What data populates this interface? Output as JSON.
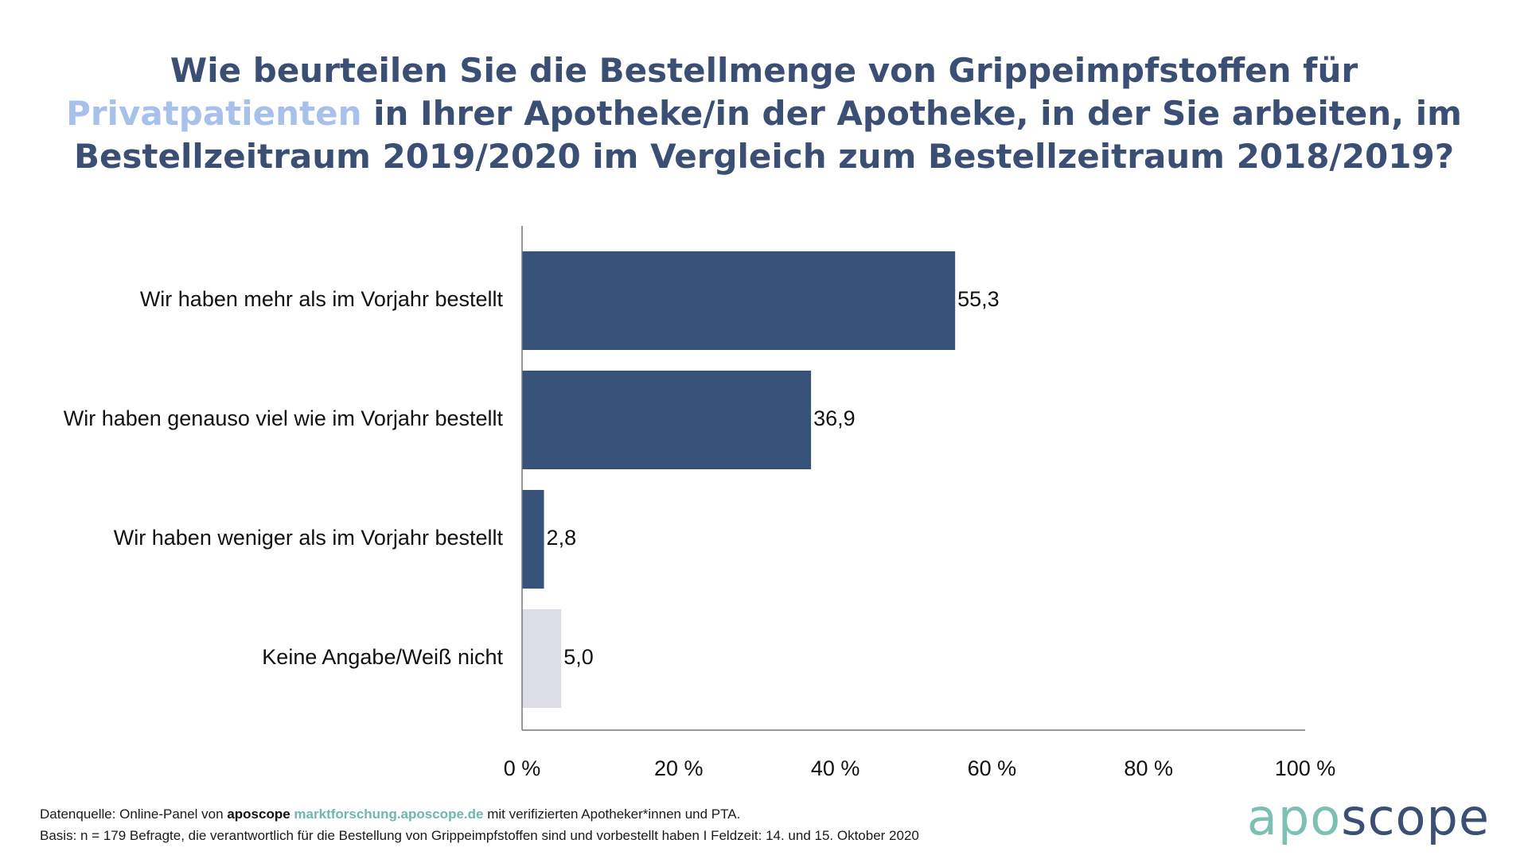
{
  "title": {
    "part1": "Wie beurteilen Sie die Bestellmenge von Grippeimpfstoffen für ",
    "highlight": "Privatpatienten",
    "part2": " in Ihrer Apotheke/in der Apotheke, in der Sie arbeiten, im Bestellzeitraum 2019/2020 im Vergleich zum Bestellzeitraum 2018/2019?"
  },
  "colors": {
    "title": "#3a4f73",
    "title_highlight": "#a8c1ea",
    "bar_primary": "#37537a",
    "bar_neutral": "#dcdde6",
    "logo_apo": "#7cc0b4",
    "logo_scope": "#3a4f73",
    "link": "#6fb7ad"
  },
  "chart_data": {
    "type": "bar",
    "orientation": "horizontal",
    "categories": [
      "Wir haben mehr als im Vorjahr bestellt",
      "Wir haben genauso viel wie im Vorjahr bestellt",
      "Wir haben weniger als im Vorjahr bestellt",
      "Keine Angabe/Weiß nicht"
    ],
    "values": [
      55.3,
      36.9,
      2.8,
      5.0
    ],
    "value_labels": [
      "55,3",
      "36,9",
      "2,8",
      "5,0"
    ],
    "bar_colors": [
      "#37537a",
      "#37537a",
      "#37537a",
      "#dcdde6"
    ],
    "xlim": [
      0,
      100
    ],
    "x_ticks": [
      0,
      20,
      40,
      60,
      80,
      100
    ],
    "x_tick_labels": [
      "0 %",
      "20 %",
      "40 %",
      "60 %",
      "80 %",
      "100 %"
    ],
    "grid": false,
    "title": "",
    "xlabel": "",
    "ylabel": ""
  },
  "footer": {
    "line1_prefix": "Datenquelle: Online-Panel von ",
    "brand": "aposcope",
    "link": "marktforschung.aposcope.de",
    "line1_suffix": " mit verifizierten Apotheker*innen und PTA.",
    "line2": "Basis: n = 179 Befragte, die verantwortlich für die Bestellung von Grippeimpfstoffen sind und vorbestellt haben I Feldzeit: 14. und 15. Oktober 2020"
  },
  "logo": {
    "part1": "apo",
    "part2": "scope"
  }
}
